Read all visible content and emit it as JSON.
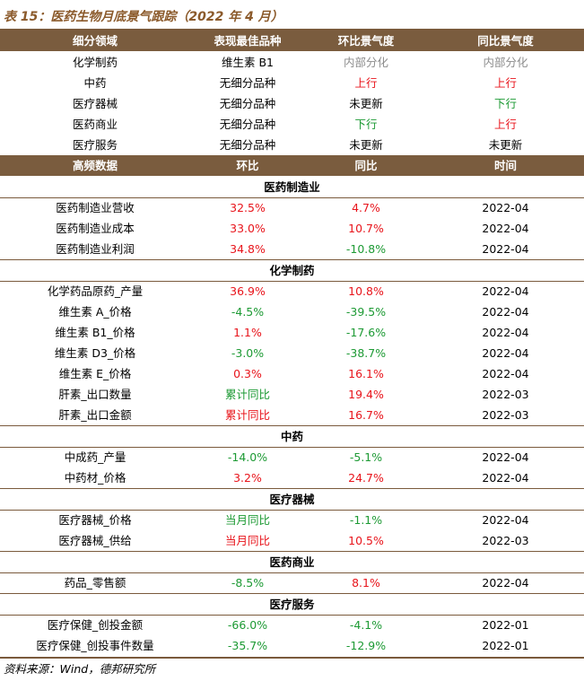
{
  "title": "表 15：医药生物月底景气跟踪（2022 年 4 月）",
  "table1": {
    "headers": [
      "细分领域",
      "表现最佳品种",
      "环比景气度",
      "同比景气度"
    ],
    "rows": [
      {
        "segment": "化学制药",
        "best": "维生素 B1",
        "mom": "内部分化",
        "yoy": "内部分化"
      },
      {
        "segment": "中药",
        "best": "无细分品种",
        "mom": "上行",
        "yoy": "上行"
      },
      {
        "segment": "医疗器械",
        "best": "无细分品种",
        "mom": "未更新",
        "yoy": "下行"
      },
      {
        "segment": "医药商业",
        "best": "无细分品种",
        "mom": "下行",
        "yoy": "上行"
      },
      {
        "segment": "医疗服务",
        "best": "无细分品种",
        "mom": "未更新",
        "yoy": "未更新"
      }
    ]
  },
  "table2": {
    "headers": [
      "高频数据",
      "环比",
      "同比",
      "时间"
    ],
    "sections": [
      {
        "name": "医药制造业",
        "rows": [
          {
            "item": "医药制造业营收",
            "mom": "32.5%",
            "yoy": "4.7%",
            "time": "2022-04"
          },
          {
            "item": "医药制造业成本",
            "mom": "33.0%",
            "yoy": "10.7%",
            "time": "2022-04"
          },
          {
            "item": "医药制造业利润",
            "mom": "34.8%",
            "yoy": "-10.8%",
            "time": "2022-04"
          }
        ]
      },
      {
        "name": "化学制药",
        "rows": [
          {
            "item": "化学药品原药_产量",
            "mom": "36.9%",
            "yoy": "10.8%",
            "time": "2022-04"
          },
          {
            "item": "维生素 A_价格",
            "mom": "-4.5%",
            "yoy": "-39.5%",
            "time": "2022-04"
          },
          {
            "item": "维生素 B1_价格",
            "mom": "1.1%",
            "yoy": "-17.6%",
            "time": "2022-04"
          },
          {
            "item": "维生素 D3_价格",
            "mom": "-3.0%",
            "yoy": "-38.7%",
            "time": "2022-04"
          },
          {
            "item": "维生素 E_价格",
            "mom": "0.3%",
            "yoy": "16.1%",
            "time": "2022-04"
          },
          {
            "item": "肝素_出口数量",
            "mom": "累计同比",
            "yoy": "19.4%",
            "time": "2022-03"
          },
          {
            "item": "肝素_出口金额",
            "mom": "累计同比",
            "yoy": "16.7%",
            "time": "2022-03"
          }
        ]
      },
      {
        "name": "中药",
        "rows": [
          {
            "item": "中成药_产量",
            "mom": "-14.0%",
            "yoy": "-5.1%",
            "time": "2022-04"
          },
          {
            "item": "中药材_价格",
            "mom": "3.2%",
            "yoy": "24.7%",
            "time": "2022-04"
          }
        ]
      },
      {
        "name": "医疗器械",
        "rows": [
          {
            "item": "医疗器械_价格",
            "mom": "当月同比",
            "yoy": "-1.1%",
            "time": "2022-04"
          },
          {
            "item": "医疗器械_供给",
            "mom": "当月同比",
            "yoy": "10.5%",
            "time": "2022-03"
          }
        ]
      },
      {
        "name": "医药商业",
        "rows": [
          {
            "item": "药品_零售额",
            "mom": "-8.5%",
            "yoy": "8.1%",
            "time": "2022-04"
          }
        ]
      },
      {
        "name": "医疗服务",
        "rows": [
          {
            "item": "医疗保健_创投金额",
            "mom": "-66.0%",
            "yoy": "-4.1%",
            "time": "2022-01"
          },
          {
            "item": "医疗保健_创投事件数量",
            "mom": "-35.7%",
            "yoy": "-12.9%",
            "time": "2022-01"
          }
        ]
      }
    ]
  },
  "source": "资料来源：Wind，德邦研究所",
  "colors": {
    "up": "#e8141b",
    "down": "#1d9a34",
    "neutral": "#8c8c8c",
    "header_bg": "#7a5c3e"
  }
}
